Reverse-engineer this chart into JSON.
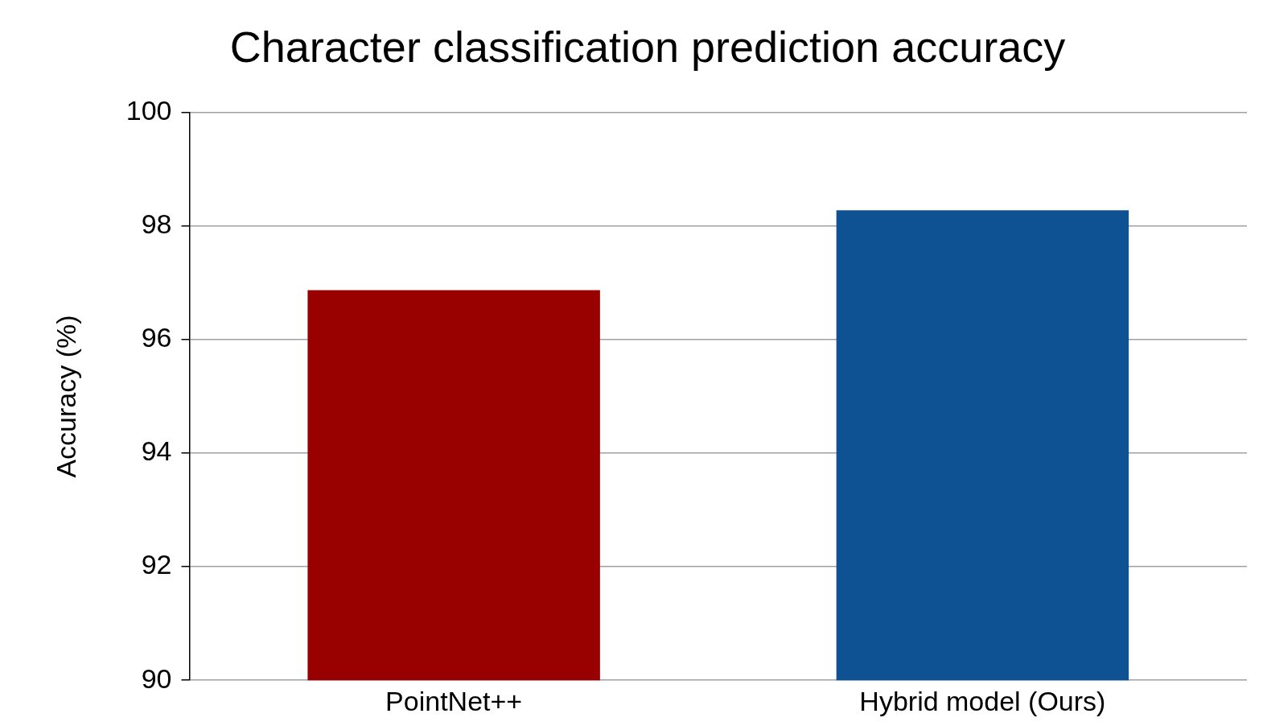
{
  "chart_data": {
    "type": "bar",
    "title": "Character classification prediction accuracy",
    "ylabel": "Accuracy (%)",
    "categories": [
      "PointNet++",
      "Hybrid model (Ours)"
    ],
    "values": [
      96.87,
      98.28
    ],
    "colors": [
      "#990000",
      "#0f5294"
    ],
    "ylim": [
      90,
      100
    ],
    "yticks": [
      90,
      92,
      94,
      96,
      98,
      100
    ],
    "grid": "y",
    "legend": false
  }
}
